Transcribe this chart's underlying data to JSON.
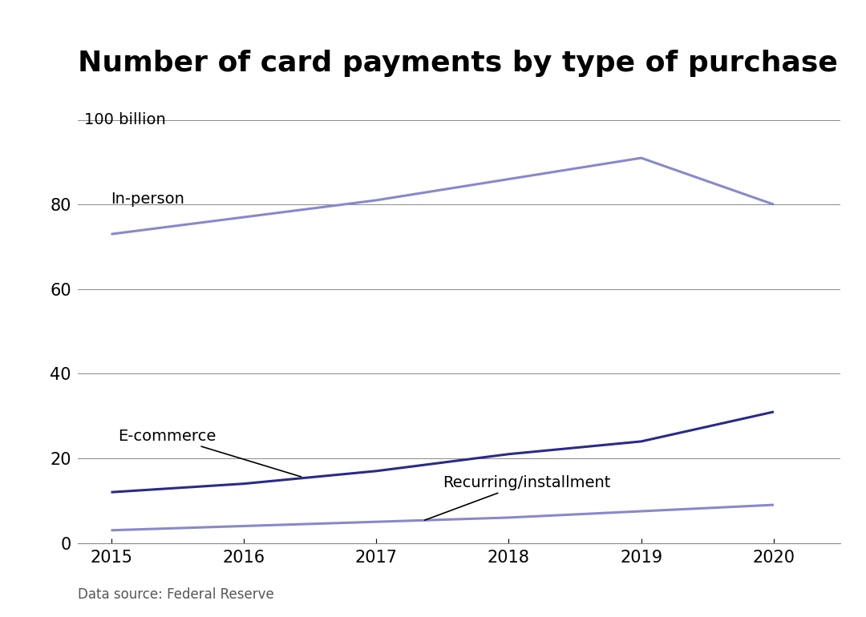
{
  "title": "Number of card payments by type of purchase",
  "years": [
    2015,
    2016,
    2017,
    2018,
    2019,
    2020
  ],
  "series": [
    {
      "label": "In-person",
      "values": [
        73,
        77,
        81,
        86,
        91,
        80
      ],
      "color": "#8888cc",
      "linewidth": 2.2
    },
    {
      "label": "E-commerce",
      "values": [
        12,
        14,
        17,
        21,
        24,
        31
      ],
      "color": "#2a2a8a",
      "linewidth": 2.2
    },
    {
      "label": "Recurring/installment",
      "values": [
        3,
        4,
        5,
        6,
        7.5,
        9
      ],
      "color": "#8888cc",
      "linewidth": 2.2
    }
  ],
  "ylim": [
    0,
    105
  ],
  "yticks": [
    0,
    20,
    40,
    60,
    80
  ],
  "top_label": "100 billion",
  "data_source": "Data source: Federal Reserve",
  "background_color": "#ffffff",
  "grid_color": "#888888",
  "title_fontsize": 26,
  "label_fontsize": 14,
  "tick_fontsize": 15,
  "source_fontsize": 12,
  "xlim_left": 2014.75,
  "xlim_right": 2020.5
}
